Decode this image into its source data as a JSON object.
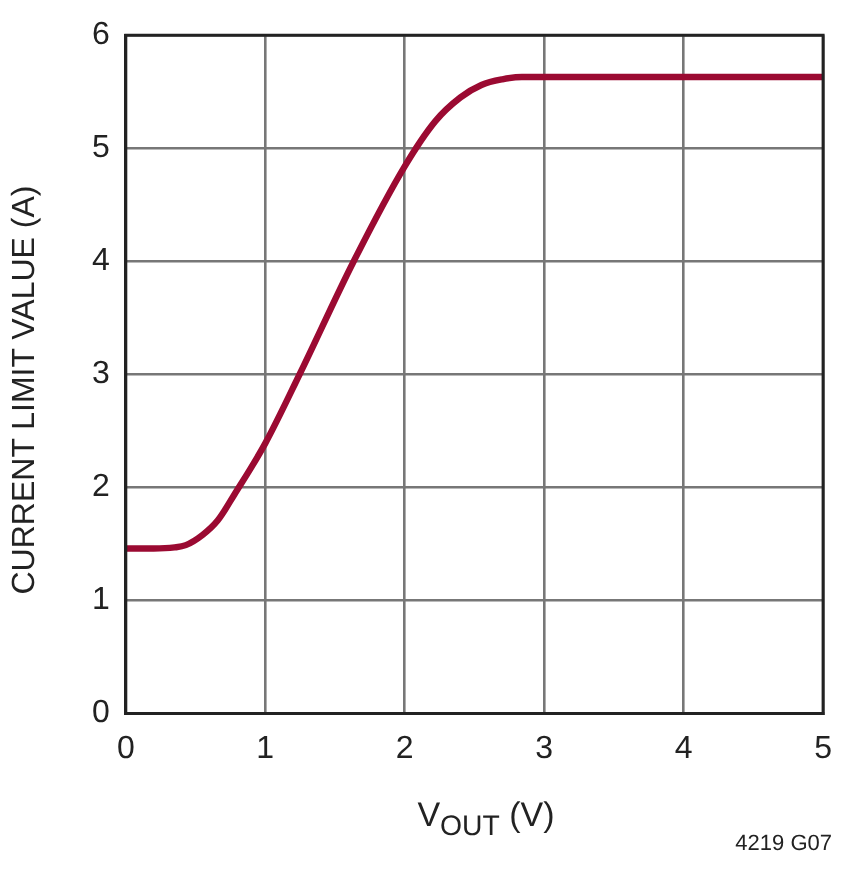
{
  "chart_data": {
    "type": "line",
    "xlabel": "V$_{OUT}$ (V)",
    "ylabel": "CURRENT LIMIT VALUE (A)",
    "annotations": [
      "4219 G07"
    ],
    "x": [
      0,
      0.2,
      0.35,
      0.43,
      0.55,
      0.66,
      0.78,
      1.0,
      1.25,
      1.63,
      2.0,
      2.22,
      2.4,
      2.55,
      2.7,
      2.84,
      3.5,
      4.0,
      5.0
    ],
    "series": [
      {
        "color": "#9b0a32",
        "values": [
          1.46,
          1.46,
          1.47,
          1.49,
          1.58,
          1.71,
          1.94,
          2.39,
          3.01,
          3.99,
          4.84,
          5.24,
          5.45,
          5.56,
          5.61,
          5.63,
          5.63,
          5.63,
          5.63
        ]
      }
    ],
    "xlim": [
      0,
      5
    ],
    "xticks": [
      0,
      1,
      2,
      3,
      4,
      5
    ],
    "ylim": [
      0,
      6
    ],
    "yticks": [
      0,
      1,
      2,
      3,
      4,
      5,
      6
    ],
    "grid": true,
    "legend": false,
    "marker": "none",
    "line_style": "solid"
  }
}
